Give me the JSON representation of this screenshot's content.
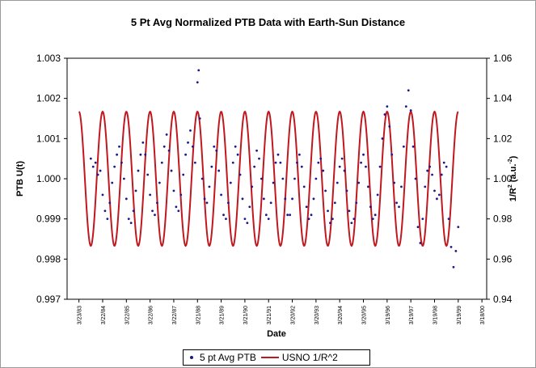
{
  "chart_data": {
    "type": "line",
    "title": "5 Pt Avg Normalized PTB Data with Earth-Sun Distance",
    "xlabel": "Date",
    "ylabel_left": "PTB U(t)",
    "ylabel_right_main": "1/R",
    "ylabel_right_sup": "2",
    "ylabel_right_unit": " (a.u.",
    "ylabel_right_unit_sup": "-2",
    "ylabel_right_close": ")",
    "y_left_range": [
      0.997,
      1.003
    ],
    "y_right_range": [
      0.94,
      1.06
    ],
    "y_left_ticks": [
      "1.003",
      "1.002",
      "1.001",
      "1.000",
      "0.999",
      "0.998",
      "0.997"
    ],
    "y_right_ticks": [
      "1.06",
      "1.04",
      "1.02",
      "1.00",
      "0.98",
      "0.96",
      "0.94"
    ],
    "x_tick_labels": [
      "3/23/83",
      "3/22/84",
      "3/22/85",
      "3/22/86",
      "3/22/87",
      "3/21/88",
      "3/21/89",
      "3/21/90",
      "3/21/91",
      "3/20/92",
      "3/20/93",
      "3/20/94",
      "3/20/95",
      "3/19/96",
      "3/19/97",
      "3/19/98",
      "3/19/99",
      "3/18/00"
    ],
    "colors": {
      "ptb": "#1a1a8c",
      "usno": "#c0181f"
    },
    "series": [
      {
        "name": "5 pt Avg PTB",
        "marker": "dot",
        "x": [
          1983.5,
          1983.6,
          1983.7,
          1983.8,
          1983.9,
          1984.0,
          1984.1,
          1984.2,
          1984.3,
          1984.4,
          1984.5,
          1984.6,
          1984.7,
          1984.8,
          1984.9,
          1985.0,
          1985.1,
          1985.2,
          1985.3,
          1985.4,
          1985.5,
          1985.6,
          1985.7,
          1985.8,
          1985.9,
          1986.0,
          1986.1,
          1986.2,
          1986.3,
          1986.4,
          1986.5,
          1986.6,
          1986.7,
          1986.8,
          1986.9,
          1987.0,
          1987.1,
          1987.2,
          1987.3,
          1987.4,
          1987.5,
          1987.6,
          1987.7,
          1987.8,
          1987.9,
          1988.0,
          1988.05,
          1988.1,
          1988.2,
          1988.3,
          1988.4,
          1988.5,
          1988.6,
          1988.7,
          1988.8,
          1988.9,
          1989.0,
          1989.1,
          1989.2,
          1989.3,
          1989.4,
          1989.5,
          1989.6,
          1989.7,
          1989.8,
          1989.9,
          1990.0,
          1990.1,
          1990.2,
          1990.3,
          1990.4,
          1990.5,
          1990.6,
          1990.7,
          1990.8,
          1990.9,
          1991.0,
          1991.1,
          1991.2,
          1991.3,
          1991.4,
          1991.5,
          1991.6,
          1991.7,
          1991.8,
          1991.9,
          1992.0,
          1992.1,
          1992.2,
          1992.3,
          1992.4,
          1992.5,
          1992.6,
          1992.7,
          1992.8,
          1992.9,
          1993.0,
          1993.1,
          1993.2,
          1993.3,
          1993.4,
          1993.5,
          1993.6,
          1993.7,
          1993.8,
          1993.9,
          1994.0,
          1994.1,
          1994.2,
          1994.3,
          1994.4,
          1994.5,
          1994.6,
          1994.7,
          1994.8,
          1994.9,
          1995.0,
          1995.1,
          1995.2,
          1995.3,
          1995.4,
          1995.5,
          1995.6,
          1995.7,
          1995.8,
          1995.9,
          1996.0,
          1996.1,
          1996.2,
          1996.3,
          1996.4,
          1996.5,
          1996.6,
          1996.7,
          1996.8,
          1996.9,
          1997.0,
          1997.1,
          1997.2,
          1997.3,
          1997.4,
          1997.5,
          1997.6,
          1997.7,
          1997.8,
          1997.9,
          1998.0,
          1998.1,
          1998.2,
          1998.3,
          1998.4,
          1998.5,
          1998.6,
          1998.7,
          1998.8,
          1998.9,
          1999.0
        ],
        "y": [
          1.0005,
          1.0003,
          1.0004,
          1.0001,
          1.0002,
          0.9996,
          0.9992,
          0.999,
          0.9994,
          0.9999,
          1.0003,
          1.0006,
          1.0008,
          1.0004,
          1.0,
          0.9995,
          0.999,
          0.9989,
          0.9992,
          0.9997,
          1.0002,
          1.0006,
          1.0009,
          1.0006,
          1.0001,
          0.9996,
          0.9992,
          0.9991,
          0.9994,
          0.9999,
          1.0004,
          1.0008,
          1.0011,
          1.0007,
          1.0002,
          0.9997,
          0.9993,
          0.9992,
          0.9996,
          1.0001,
          1.0006,
          1.0009,
          1.0012,
          1.0008,
          1.0004,
          1.0024,
          1.0027,
          1.0015,
          1.0,
          0.9995,
          0.9994,
          0.9998,
          1.0003,
          1.0008,
          1.0007,
          1.0002,
          0.9996,
          0.9991,
          0.999,
          0.9994,
          0.9999,
          1.0004,
          1.0008,
          1.0006,
          1.0001,
          0.9995,
          0.999,
          0.9989,
          0.9993,
          0.9998,
          1.0003,
          1.0007,
          1.0005,
          1.0,
          0.9995,
          0.9991,
          0.999,
          0.9994,
          0.9999,
          1.0004,
          1.0006,
          1.0004,
          1.0,
          0.9995,
          0.9991,
          0.9991,
          0.9995,
          1.0,
          1.0004,
          1.0006,
          1.0003,
          0.9998,
          0.9993,
          0.999,
          0.9991,
          0.9995,
          1.0,
          1.0004,
          1.0005,
          1.0002,
          0.9997,
          0.9992,
          0.9989,
          0.999,
          0.9994,
          0.9999,
          1.0003,
          1.0005,
          1.0002,
          0.9997,
          0.9992,
          0.9989,
          0.999,
          0.9994,
          0.9999,
          1.0004,
          1.0006,
          1.0003,
          0.9998,
          0.9993,
          0.999,
          0.9991,
          0.9996,
          1.0003,
          1.001,
          1.0016,
          1.0018,
          1.0013,
          1.0006,
          0.9999,
          0.9994,
          0.9993,
          0.9998,
          1.0008,
          1.0018,
          1.0022,
          1.0017,
          1.0008,
          1.0,
          0.9988,
          0.9984,
          0.999,
          0.9998,
          1.0002,
          1.0003,
          1.0001,
          0.9997,
          0.9995,
          0.9996,
          1.0001,
          1.0004,
          1.0003,
          0.999,
          0.9983,
          0.9978,
          0.9982,
          0.9988
        ]
      },
      {
        "name": "USNO 1/R^2",
        "marker": "line",
        "axis": "right",
        "period_years": 1.0,
        "mean": 1.0,
        "amplitude": 0.0334,
        "peak_fraction": 0.0,
        "x_start": 1983.0,
        "x_end": 1999.0
      }
    ]
  },
  "legend": {
    "item1": "5 pt Avg PTB",
    "item2": "USNO 1/R^2"
  }
}
